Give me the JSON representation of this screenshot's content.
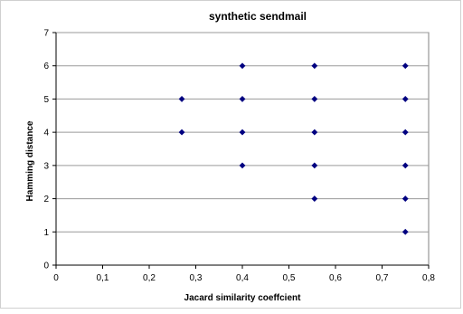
{
  "chart_data": {
    "type": "scatter",
    "title": "synthetic sendmail",
    "xlabel": "Jacard similarity coeffcient",
    "ylabel": "Hamming distance",
    "xlim": [
      0,
      0.8
    ],
    "ylim": [
      0,
      7
    ],
    "x_ticks": [
      "0",
      "0,1",
      "0,2",
      "0,3",
      "0,4",
      "0,5",
      "0,6",
      "0,7",
      "0,8"
    ],
    "y_ticks": [
      "0",
      "1",
      "2",
      "3",
      "4",
      "5",
      "6",
      "7"
    ],
    "grid": "horizontal",
    "marker_color": "#000080",
    "gridline_color": "#9a9a9a",
    "series": [
      {
        "points": [
          {
            "x": 0.27,
            "y": 4
          },
          {
            "x": 0.27,
            "y": 5
          },
          {
            "x": 0.4,
            "y": 3
          },
          {
            "x": 0.4,
            "y": 4
          },
          {
            "x": 0.4,
            "y": 5
          },
          {
            "x": 0.4,
            "y": 6
          },
          {
            "x": 0.555,
            "y": 2
          },
          {
            "x": 0.555,
            "y": 3
          },
          {
            "x": 0.555,
            "y": 4
          },
          {
            "x": 0.555,
            "y": 5
          },
          {
            "x": 0.555,
            "y": 6
          },
          {
            "x": 0.75,
            "y": 1
          },
          {
            "x": 0.75,
            "y": 2
          },
          {
            "x": 0.75,
            "y": 3
          },
          {
            "x": 0.75,
            "y": 4
          },
          {
            "x": 0.75,
            "y": 5
          },
          {
            "x": 0.75,
            "y": 6
          }
        ]
      }
    ]
  }
}
